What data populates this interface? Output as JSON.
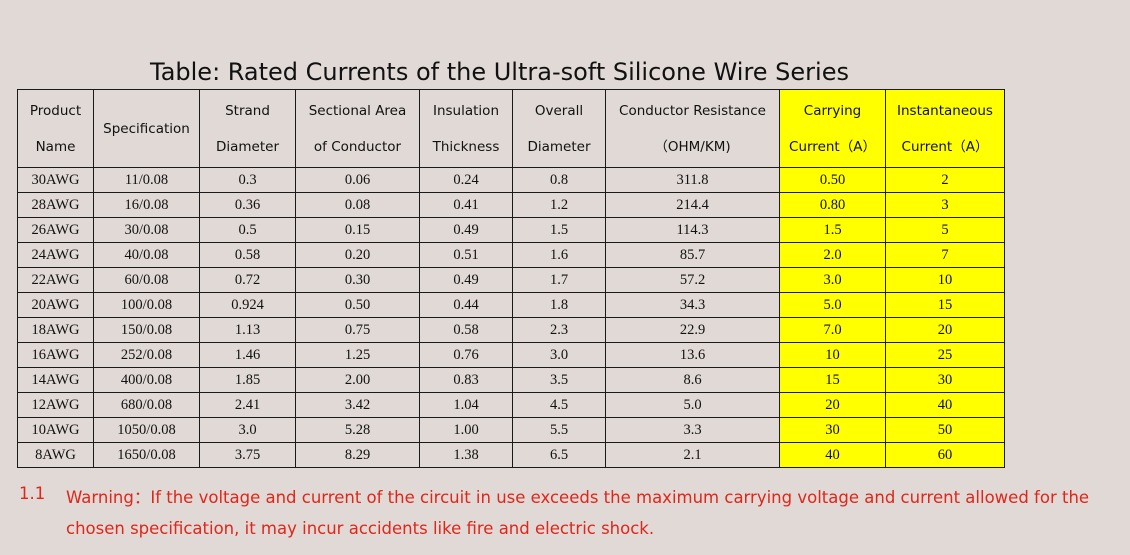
{
  "title": "Table: Rated Currents of the Ultra-soft Silicone Wire Series",
  "headers": [
    [
      "Product",
      "Name"
    ],
    [
      "Specification"
    ],
    [
      "Strand",
      "Diameter"
    ],
    [
      "Sectional Area",
      "of Conductor"
    ],
    [
      "Insulation",
      "Thickness"
    ],
    [
      "Overall",
      "Diameter"
    ],
    [
      "Conductor Resistance",
      "（OHM/KM)"
    ],
    [
      "Carrying",
      "Current（A）"
    ],
    [
      "Instantaneous",
      "Current（A）"
    ]
  ],
  "rows": [
    [
      "30AWG",
      "11/0.08",
      "0.3",
      "0.06",
      "0.24",
      "0.8",
      "311.8",
      "0.50",
      "2"
    ],
    [
      "28AWG",
      "16/0.08",
      "0.36",
      "0.08",
      "0.41",
      "1.2",
      "214.4",
      "0.80",
      "3"
    ],
    [
      "26AWG",
      "30/0.08",
      "0.5",
      "0.15",
      "0.49",
      "1.5",
      "114.3",
      "1.5",
      "5"
    ],
    [
      "24AWG",
      "40/0.08",
      "0.58",
      "0.20",
      "0.51",
      "1.6",
      "85.7",
      "2.0",
      "7"
    ],
    [
      "22AWG",
      "60/0.08",
      "0.72",
      "0.30",
      "0.49",
      "1.7",
      "57.2",
      "3.0",
      "10"
    ],
    [
      "20AWG",
      "100/0.08",
      "0.924",
      "0.50",
      "0.44",
      "1.8",
      "34.3",
      "5.0",
      "15"
    ],
    [
      "18AWG",
      "150/0.08",
      "1.13",
      "0.75",
      "0.58",
      "2.3",
      "22.9",
      "7.0",
      "20"
    ],
    [
      "16AWG",
      "252/0.08",
      "1.46",
      "1.25",
      "0.76",
      "3.0",
      "13.6",
      "10",
      "25"
    ],
    [
      "14AWG",
      "400/0.08",
      "1.85",
      "2.00",
      "0.83",
      "3.5",
      "8.6",
      "15",
      "30"
    ],
    [
      "12AWG",
      "680/0.08",
      "2.41",
      "3.42",
      "1.04",
      "4.5",
      "5.0",
      "20",
      "40"
    ],
    [
      "10AWG",
      "1050/0.08",
      "3.0",
      "5.28",
      "1.00",
      "5.5",
      "3.3",
      "30",
      "50"
    ],
    [
      "8AWG",
      "1650/0.08",
      "3.75",
      "8.29",
      "1.38",
      "6.5",
      "2.1",
      "40",
      "60"
    ]
  ],
  "warning": {
    "number": "1.1",
    "line1": "Warning：If the voltage and current of the circuit in use exceeds the maximum carrying voltage and current allowed for the",
    "line2": "chosen specification, it may incur accidents like fire and electric shock."
  },
  "colors": {
    "highlight": "#ffff00",
    "warning": "#e0261b",
    "background": "#e0d9d5"
  }
}
